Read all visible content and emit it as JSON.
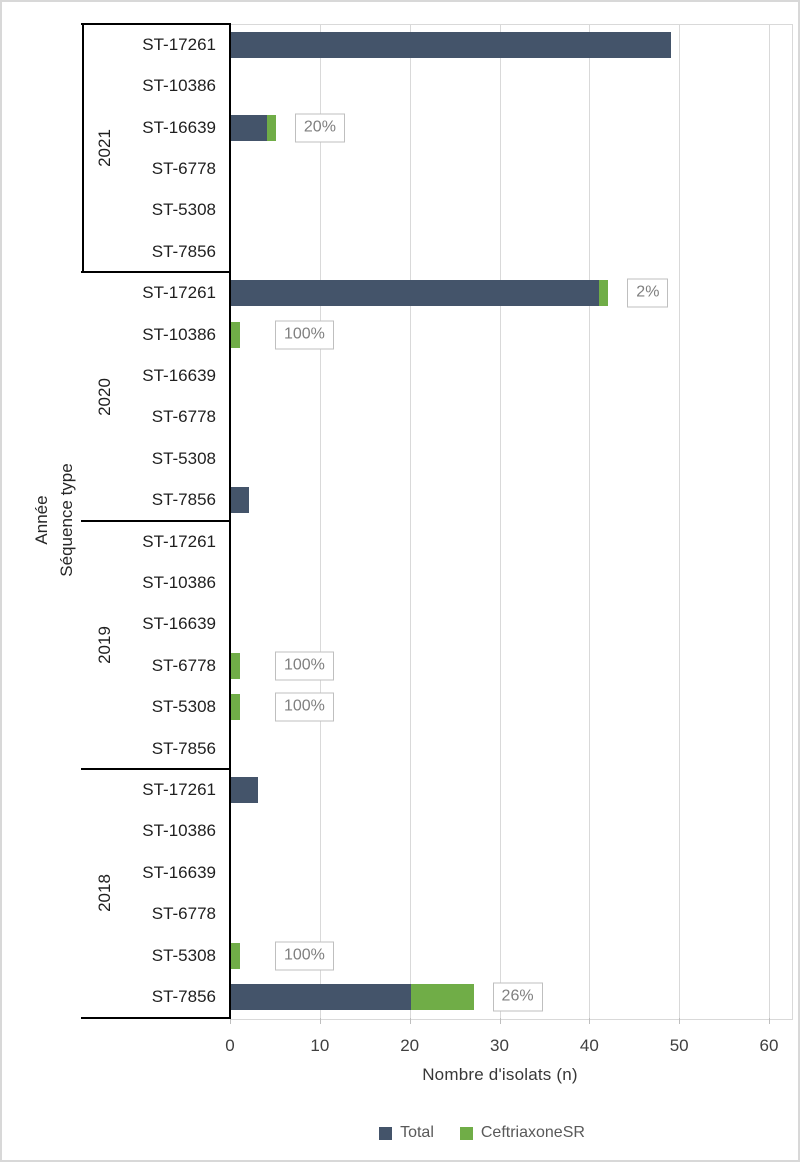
{
  "chart_data": {
    "type": "bar",
    "orientation": "horizontal",
    "xlabel": "Nombre d'isolats (n)",
    "ylabel_line1": "Année",
    "ylabel_line2": "Séquence type",
    "xlim": [
      0,
      60
    ],
    "xticks": [
      0,
      10,
      20,
      30,
      40,
      50,
      60
    ],
    "grid": "vertical-gridlines-on",
    "legend_position": "bottom-center",
    "legend": [
      {
        "name": "Total",
        "color": "#44546A"
      },
      {
        "name": "CeftriaxoneSR",
        "color": "#70AD47"
      }
    ],
    "sequence_types": [
      "ST-17261",
      "ST-10386",
      "ST-16639",
      "ST-6778",
      "ST-5308",
      "ST-7856"
    ],
    "groups": [
      {
        "year": "2021",
        "boxed": true,
        "rows": [
          {
            "st": "ST-17261",
            "total": 49,
            "ceftriaxoneSR": 0,
            "label": ""
          },
          {
            "st": "ST-10386",
            "total": 0,
            "ceftriaxoneSR": 0,
            "label": ""
          },
          {
            "st": "ST-16639",
            "total": 5,
            "ceftriaxoneSR": 1,
            "label": "20%"
          },
          {
            "st": "ST-6778",
            "total": 0,
            "ceftriaxoneSR": 0,
            "label": ""
          },
          {
            "st": "ST-5308",
            "total": 0,
            "ceftriaxoneSR": 0,
            "label": ""
          },
          {
            "st": "ST-7856",
            "total": 0,
            "ceftriaxoneSR": 0,
            "label": ""
          }
        ]
      },
      {
        "year": "2020",
        "boxed": false,
        "rows": [
          {
            "st": "ST-17261",
            "total": 42,
            "ceftriaxoneSR": 1,
            "label": "2%"
          },
          {
            "st": "ST-10386",
            "total": 1,
            "ceftriaxoneSR": 1,
            "label": "100%"
          },
          {
            "st": "ST-16639",
            "total": 0,
            "ceftriaxoneSR": 0,
            "label": ""
          },
          {
            "st": "ST-6778",
            "total": 0,
            "ceftriaxoneSR": 0,
            "label": ""
          },
          {
            "st": "ST-5308",
            "total": 0,
            "ceftriaxoneSR": 0,
            "label": ""
          },
          {
            "st": "ST-7856",
            "total": 2,
            "ceftriaxoneSR": 0,
            "label": ""
          }
        ]
      },
      {
        "year": "2019",
        "boxed": false,
        "rows": [
          {
            "st": "ST-17261",
            "total": 0,
            "ceftriaxoneSR": 0,
            "label": ""
          },
          {
            "st": "ST-10386",
            "total": 0,
            "ceftriaxoneSR": 0,
            "label": ""
          },
          {
            "st": "ST-16639",
            "total": 0,
            "ceftriaxoneSR": 0,
            "label": ""
          },
          {
            "st": "ST-6778",
            "total": 1,
            "ceftriaxoneSR": 1,
            "label": "100%"
          },
          {
            "st": "ST-5308",
            "total": 1,
            "ceftriaxoneSR": 1,
            "label": "100%"
          },
          {
            "st": "ST-7856",
            "total": 0,
            "ceftriaxoneSR": 0,
            "label": ""
          }
        ]
      },
      {
        "year": "2018",
        "boxed": false,
        "rows": [
          {
            "st": "ST-17261",
            "total": 3,
            "ceftriaxoneSR": 0,
            "label": ""
          },
          {
            "st": "ST-10386",
            "total": 0,
            "ceftriaxoneSR": 0,
            "label": ""
          },
          {
            "st": "ST-16639",
            "total": 0,
            "ceftriaxoneSR": 0,
            "label": ""
          },
          {
            "st": "ST-6778",
            "total": 0,
            "ceftriaxoneSR": 0,
            "label": ""
          },
          {
            "st": "ST-5308",
            "total": 1,
            "ceftriaxoneSR": 1,
            "label": "100%"
          },
          {
            "st": "ST-7856",
            "total": 27,
            "ceftriaxoneSR": 7,
            "label": "26%"
          }
        ]
      }
    ]
  },
  "colors": {
    "total_bar": "#44546A",
    "ceftriaxone_sr_bar": "#70AD47",
    "gridline": "#D9D9D9",
    "axis_line": "#000000",
    "data_label_text": "#7F7F7F",
    "data_label_border": "#BFBFBF",
    "tick_label_text": "#404040",
    "category_text": "#1F1F1F",
    "legend_text": "#595959",
    "frame_border": "#D8D8D8"
  }
}
